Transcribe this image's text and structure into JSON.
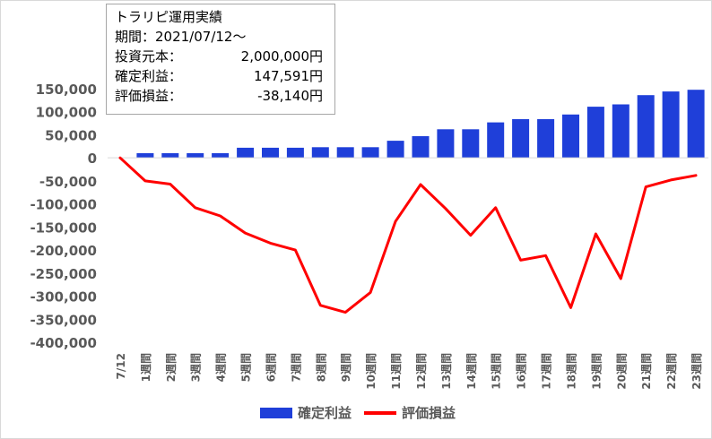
{
  "chart_data": {
    "type": "bar+line",
    "categories": [
      "7/12",
      "1週間",
      "2週間",
      "3週間",
      "4週間",
      "5週間",
      "6週間",
      "7週間",
      "8週間",
      "9週間",
      "10週間",
      "11週間",
      "12週間",
      "13週間",
      "14週間",
      "15週間",
      "16週間",
      "17週間",
      "18週間",
      "19週間",
      "20週間",
      "21週間",
      "22週間",
      "23週間"
    ],
    "series": [
      {
        "name": "確定利益",
        "type": "bar",
        "color": "#1f3fd9",
        "values": [
          0,
          10000,
          10000,
          10000,
          10000,
          22000,
          22000,
          22000,
          23000,
          23000,
          23000,
          37000,
          47000,
          62000,
          62000,
          77000,
          84000,
          84000,
          94000,
          111000,
          116000,
          136000,
          144000,
          147591
        ]
      },
      {
        "name": "評価損益",
        "type": "line",
        "color": "#ff0000",
        "values": [
          0,
          -50000,
          -57000,
          -108000,
          -126000,
          -163000,
          -185000,
          -200000,
          -320000,
          -335000,
          -292000,
          -138000,
          -58000,
          -110000,
          -168000,
          -108000,
          -222000,
          -212000,
          -325000,
          -165000,
          -262000,
          -63000,
          -48000,
          -38140
        ]
      }
    ],
    "ylim": [
      -400000,
      150000
    ],
    "yticks": [
      "150,000",
      "100,000",
      "50,000",
      "0",
      "-50,000",
      "-100,000",
      "-150,000",
      "-200,000",
      "-250,000",
      "-300,000",
      "-350,000",
      "-400,000"
    ],
    "ytick_values": [
      150000,
      100000,
      50000,
      0,
      -50000,
      -100000,
      -150000,
      -200000,
      -250000,
      -300000,
      -350000,
      -400000
    ],
    "grid": false,
    "legend_position": "bottom"
  },
  "info": {
    "title": "トラリピ運用実績",
    "period": "期間：2021/07/12～",
    "rows": [
      {
        "label": "投資元本：",
        "value": "2,000,000円"
      },
      {
        "label": "確定利益：",
        "value": "147,591円"
      },
      {
        "label": "評価損益：",
        "value": "-38,140円"
      }
    ]
  },
  "legend": {
    "bar_label": "確定利益",
    "line_label": "評価損益"
  }
}
